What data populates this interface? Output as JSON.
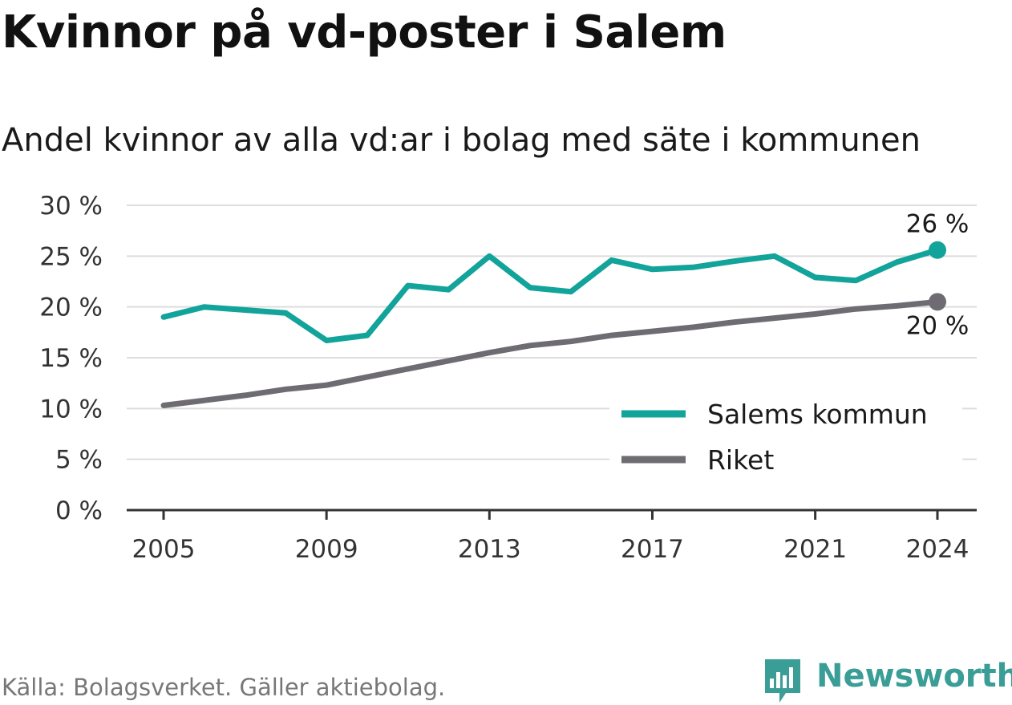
{
  "title": "Kvinnor på vd-poster i Salem",
  "subtitle": "Andel kvinnor av alla vd:ar i bolag med säte i kommunen",
  "source": "Källa: Bolagsverket. Gäller aktiebolag.",
  "brand": "Newsworthy",
  "colors": {
    "salem": "#12a39a",
    "riket": "#6e6c72",
    "grid": "#dddddd",
    "axis": "#333333",
    "brand": "#3a9d96"
  },
  "chart_data": {
    "type": "line",
    "ylim": [
      0,
      30
    ],
    "yticks": [
      0,
      5,
      10,
      15,
      20,
      25,
      30
    ],
    "ytick_labels": [
      "0 %",
      "5 %",
      "10 %",
      "15 %",
      "20 %",
      "25 %",
      "30 %"
    ],
    "xlim": [
      2005,
      2024
    ],
    "xticks": [
      2005,
      2009,
      2013,
      2017,
      2021,
      2024
    ],
    "xtick_labels": [
      "2005",
      "2009",
      "2013",
      "2017",
      "2021",
      "2024"
    ],
    "grid": true,
    "legend_position": "bottom-right",
    "x": [
      2005,
      2006,
      2007,
      2008,
      2009,
      2010,
      2011,
      2012,
      2013,
      2014,
      2015,
      2016,
      2017,
      2018,
      2019,
      2020,
      2021,
      2022,
      2023,
      2024
    ],
    "series": [
      {
        "name": "Salems kommun",
        "color": "#12a39a",
        "values": [
          19.0,
          20.0,
          19.7,
          19.4,
          16.7,
          17.2,
          22.1,
          21.7,
          25.0,
          21.9,
          21.5,
          24.6,
          23.7,
          23.9,
          24.5,
          25.0,
          22.9,
          22.6,
          24.4,
          25.6
        ],
        "end_label": "26 %"
      },
      {
        "name": "Riket",
        "color": "#6e6c72",
        "values": [
          10.3,
          10.8,
          11.3,
          11.9,
          12.3,
          13.1,
          13.9,
          14.7,
          15.5,
          16.2,
          16.6,
          17.2,
          17.6,
          18.0,
          18.5,
          18.9,
          19.3,
          19.8,
          20.1,
          20.5
        ],
        "end_label": "20 %"
      }
    ]
  }
}
